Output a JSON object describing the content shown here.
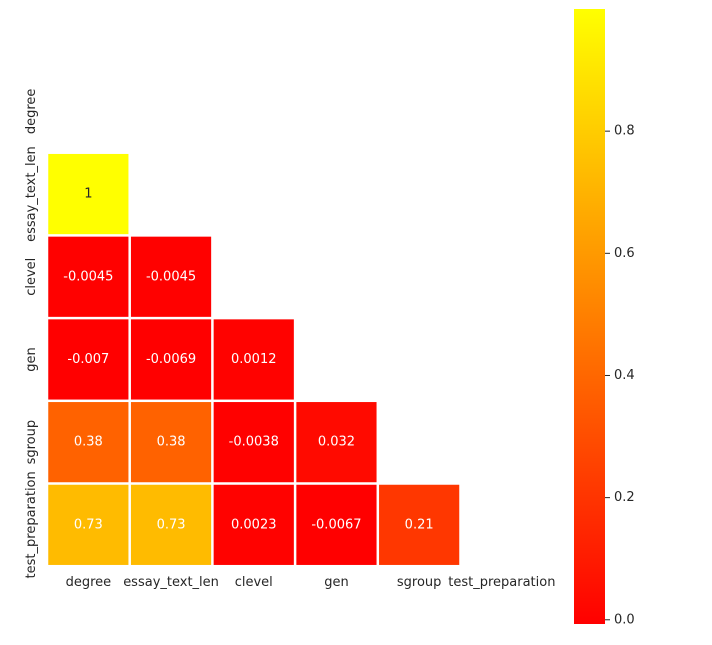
{
  "chart_data": {
    "type": "heatmap",
    "mask": "upper-triangle",
    "x_labels": [
      "degree",
      "essay_text_len",
      "clevel",
      "gen",
      "sgroup",
      "test_preparation"
    ],
    "y_labels": [
      "degree",
      "essay_text_len",
      "clevel",
      "gen",
      "sgroup",
      "test_preparation"
    ],
    "values": [
      [
        null,
        null,
        null,
        null,
        null,
        null
      ],
      [
        1,
        null,
        null,
        null,
        null,
        null
      ],
      [
        -0.0045,
        -0.0045,
        null,
        null,
        null,
        null
      ],
      [
        -0.007,
        -0.0069,
        0.0012,
        null,
        null,
        null
      ],
      [
        0.38,
        0.38,
        -0.0038,
        0.032,
        null,
        null
      ],
      [
        0.73,
        0.73,
        0.0023,
        -0.0067,
        0.21,
        null
      ]
    ],
    "cell_labels": [
      [
        null,
        null,
        null,
        null,
        null,
        null
      ],
      [
        "1",
        null,
        null,
        null,
        null,
        null
      ],
      [
        "-0.0045",
        "-0.0045",
        null,
        null,
        null,
        null
      ],
      [
        "-0.007",
        "-0.0069",
        "0.0012",
        null,
        null,
        null
      ],
      [
        "0.38",
        "0.38",
        "-0.0038",
        "0.032",
        null,
        null
      ],
      [
        "0.73",
        "0.73",
        "0.0023",
        "-0.0067",
        "0.21",
        null
      ]
    ],
    "colormap": "autumn",
    "colorbar": {
      "vmin": -0.0069,
      "vmax": 1,
      "ticks": [
        0.0,
        0.2,
        0.4,
        0.6,
        0.8
      ],
      "tick_labels": [
        "0.0",
        "0.2",
        "0.4",
        "0.6",
        "0.8"
      ]
    },
    "colors": {
      "low": "#ff0000",
      "high": "#ffff00",
      "cell_border": "#ffffff",
      "annotation_text": "#ffffff",
      "axis_text": "#262626"
    }
  }
}
